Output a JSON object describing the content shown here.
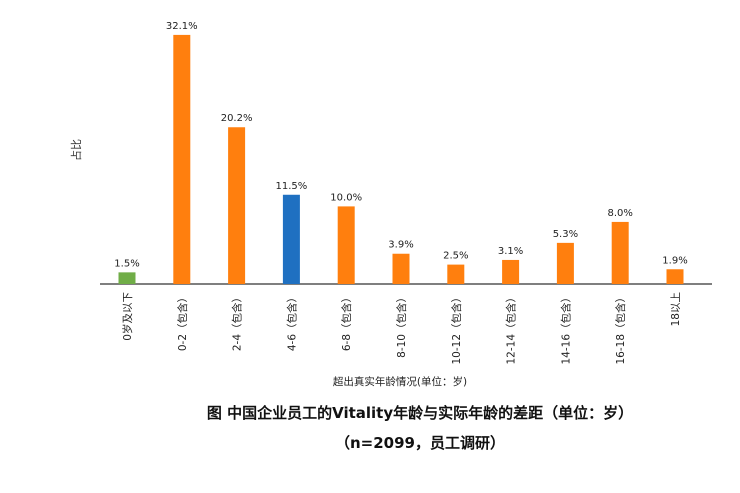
{
  "chart_data": {
    "type": "bar",
    "title": "图 中国企业员工的Vitality年龄与实际年龄的差距（单位：岁）",
    "subtitle": "（n=2099，员工调研）",
    "xlabel": "超出真实年龄情况(单位：岁)",
    "ylabel": "占比",
    "categories": [
      "0岁及以下",
      "0-2（包含）",
      "2-4（包含）",
      "4-6（包含）",
      "6-8（包含）",
      "8-10（包含）",
      "10-12（包含）",
      "12-14（包含）",
      "14-16（包含）",
      "16-18（包含）",
      "18以上"
    ],
    "values": [
      1.5,
      32.1,
      20.2,
      11.5,
      10.0,
      3.9,
      2.5,
      3.1,
      5.3,
      8.0,
      1.9
    ],
    "data_labels": [
      "1.5%",
      "32.1%",
      "20.2%",
      "11.5%",
      "10.0%",
      "3.9%",
      "2.5%",
      "3.1%",
      "5.3%",
      "8.0%",
      "1.9%"
    ],
    "colors": [
      "#70ad47",
      "#ff7f0e",
      "#ff7f0e",
      "#1f70c1",
      "#ff7f0e",
      "#ff7f0e",
      "#ff7f0e",
      "#ff7f0e",
      "#ff7f0e",
      "#ff7f0e",
      "#ff7f0e"
    ],
    "grid": false,
    "legend": "none"
  }
}
